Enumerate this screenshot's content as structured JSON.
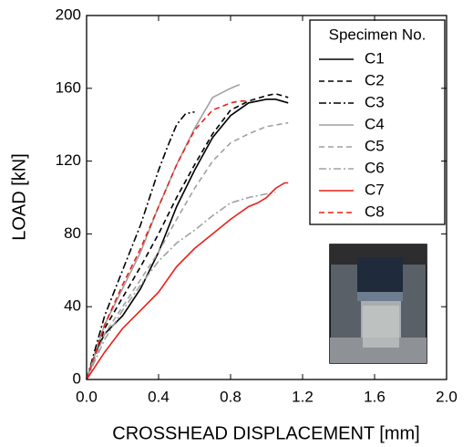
{
  "chart_data": {
    "type": "line",
    "xlabel": "CROSSHEAD DISPLACEMENT [mm]",
    "ylabel": "LOAD [kN]",
    "xlim": [
      0,
      2
    ],
    "ylim": [
      0,
      200
    ],
    "xticks": [
      {
        "value": 0,
        "label": "0.0"
      },
      0.4,
      0.8,
      1.2,
      1.6,
      {
        "value": 2,
        "label": "2.0"
      }
    ],
    "yticks": [
      0,
      40,
      80,
      120,
      160,
      200
    ],
    "legend_title": "Specimen No.",
    "legend_position": "upper right",
    "series": [
      {
        "name": "C1",
        "color": "#000000",
        "linestyle": "solid",
        "x": [
          0,
          0.05,
          0.1,
          0.2,
          0.3,
          0.4,
          0.5,
          0.6,
          0.7,
          0.8,
          0.9,
          1.0,
          1.05,
          1.12
        ],
        "values": [
          0,
          15,
          25,
          35,
          50,
          70,
          95,
          115,
          133,
          145,
          152,
          154,
          154,
          152
        ]
      },
      {
        "name": "C2",
        "color": "#000000",
        "linestyle": "dashed",
        "x": [
          0,
          0.1,
          0.2,
          0.3,
          0.4,
          0.5,
          0.6,
          0.7,
          0.8,
          0.9,
          1.0,
          1.05,
          1.12
        ],
        "values": [
          0,
          28,
          45,
          62,
          80,
          100,
          118,
          135,
          148,
          153,
          156,
          157,
          155
        ]
      },
      {
        "name": "C3",
        "color": "#000000",
        "linestyle": "dashdot",
        "x": [
          0,
          0.1,
          0.2,
          0.3,
          0.4,
          0.45,
          0.5,
          0.55,
          0.6
        ],
        "values": [
          0,
          35,
          60,
          85,
          115,
          128,
          140,
          146,
          147
        ]
      },
      {
        "name": "C4",
        "color": "#a0a0a0",
        "linestyle": "solid",
        "x": [
          0,
          0.1,
          0.2,
          0.3,
          0.4,
          0.5,
          0.6,
          0.7,
          0.8,
          0.85
        ],
        "values": [
          0,
          30,
          50,
          70,
          95,
          118,
          138,
          155,
          160,
          162
        ]
      },
      {
        "name": "C5",
        "color": "#a0a0a0",
        "linestyle": "dashed",
        "x": [
          0,
          0.1,
          0.2,
          0.3,
          0.4,
          0.5,
          0.6,
          0.7,
          0.8,
          0.9,
          1.0,
          1.12
        ],
        "values": [
          0,
          25,
          40,
          55,
          70,
          88,
          105,
          120,
          130,
          135,
          139,
          141
        ]
      },
      {
        "name": "C6",
        "color": "#a0a0a0",
        "linestyle": "dashdot",
        "x": [
          0,
          0.1,
          0.2,
          0.3,
          0.4,
          0.5,
          0.6,
          0.7,
          0.8,
          0.9,
          1.0,
          1.05
        ],
        "values": [
          0,
          22,
          38,
          52,
          65,
          75,
          82,
          90,
          97,
          100,
          102,
          103
        ]
      },
      {
        "name": "C7",
        "color": "#e8201a",
        "linestyle": "solid",
        "x": [
          0,
          0.1,
          0.2,
          0.3,
          0.4,
          0.5,
          0.6,
          0.7,
          0.8,
          0.9,
          0.95,
          1.0,
          1.05,
          1.1,
          1.12
        ],
        "values": [
          0,
          15,
          28,
          38,
          48,
          62,
          72,
          80,
          88,
          95,
          97,
          100,
          105,
          108,
          108
        ]
      },
      {
        "name": "C8",
        "color": "#e8201a",
        "linestyle": "dashed",
        "x": [
          0,
          0.1,
          0.2,
          0.3,
          0.4,
          0.5,
          0.6,
          0.7,
          0.8,
          0.85,
          0.9
        ],
        "values": [
          0,
          30,
          52,
          72,
          95,
          118,
          137,
          148,
          152,
          153,
          153
        ]
      }
    ]
  }
}
